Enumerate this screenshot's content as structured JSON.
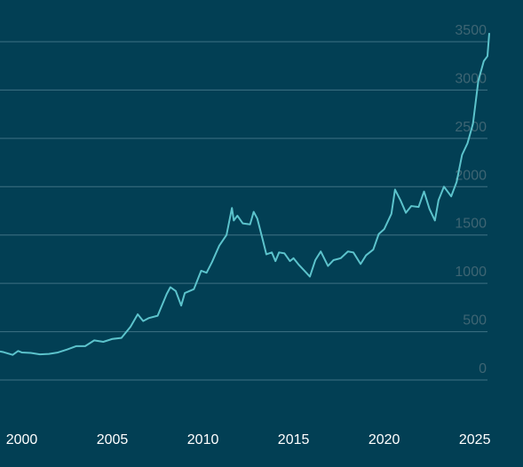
{
  "chart_data": {
    "type": "line",
    "x": [
      1998.8,
      1999.0,
      1999.5,
      1999.8,
      2000.0,
      2000.5,
      2001.0,
      2001.5,
      2002.0,
      2002.5,
      2003.0,
      2003.5,
      2004.0,
      2004.5,
      2005.0,
      2005.5,
      2006.0,
      2006.4,
      2006.7,
      2007.0,
      2007.5,
      2008.0,
      2008.2,
      2008.5,
      2008.8,
      2009.0,
      2009.5,
      2009.9,
      2010.2,
      2010.5,
      2010.9,
      2011.3,
      2011.6,
      2011.7,
      2011.9,
      2012.2,
      2012.6,
      2012.8,
      2013.0,
      2013.3,
      2013.5,
      2013.8,
      2014.0,
      2014.2,
      2014.5,
      2014.8,
      2015.0,
      2015.3,
      2015.6,
      2015.9,
      2016.2,
      2016.5,
      2016.9,
      2017.2,
      2017.6,
      2018.0,
      2018.3,
      2018.7,
      2019.0,
      2019.4,
      2019.7,
      2020.0,
      2020.4,
      2020.6,
      2020.9,
      2021.2,
      2021.5,
      2021.9,
      2022.2,
      2022.5,
      2022.8,
      2023.0,
      2023.3,
      2023.7,
      2024.0,
      2024.3,
      2024.6,
      2024.9,
      2025.2,
      2025.5,
      2025.7,
      2025.8
    ],
    "series": [
      {
        "color": "#5cc3cc",
        "values": [
          295,
          288,
          260,
          300,
          285,
          280,
          265,
          270,
          285,
          315,
          350,
          350,
          410,
          395,
          425,
          435,
          550,
          680,
          610,
          640,
          665,
          890,
          960,
          920,
          770,
          900,
          940,
          1130,
          1110,
          1220,
          1390,
          1500,
          1780,
          1650,
          1700,
          1620,
          1610,
          1740,
          1670,
          1450,
          1300,
          1320,
          1230,
          1320,
          1310,
          1230,
          1260,
          1190,
          1130,
          1070,
          1240,
          1330,
          1180,
          1240,
          1260,
          1330,
          1320,
          1200,
          1290,
          1350,
          1510,
          1560,
          1720,
          1970,
          1860,
          1730,
          1800,
          1790,
          1950,
          1770,
          1650,
          1860,
          2000,
          1900,
          2050,
          2330,
          2450,
          2650,
          3100,
          3300,
          3350,
          3590
        ]
      }
    ],
    "xlim": [
      1998.8,
      2025.8
    ],
    "xticks": [
      2000,
      2005,
      2010,
      2015,
      2020,
      2025
    ],
    "ylim": [
      0,
      3500
    ],
    "yticks": [
      0,
      500,
      1000,
      1500,
      2000,
      2500,
      3000,
      3500
    ],
    "grid": true
  }
}
